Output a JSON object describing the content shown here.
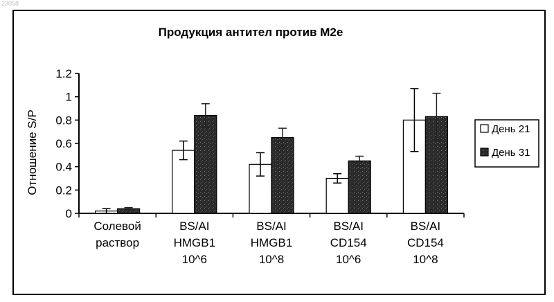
{
  "corner_text": "23058",
  "chart_data": {
    "type": "bar",
    "title": "Продукция антител против M2e",
    "ylabel": "Отношение S/P",
    "xlabel": "",
    "ylim": [
      0,
      1.2
    ],
    "yticks": [
      0,
      0.2,
      0.4,
      0.6,
      0.8,
      1,
      1.2
    ],
    "ytick_labels": [
      "0",
      "0.2",
      "0.4",
      "0.6",
      "0.8",
      "1",
      "1.2"
    ],
    "grid": false,
    "legend_position": "right",
    "categories": [
      [
        "Солевой",
        "раствор"
      ],
      [
        "BS/AI",
        "HMGB1",
        "10^6"
      ],
      [
        "BS/AI",
        "HMGB1",
        "10^8"
      ],
      [
        "BS/AI",
        "CD154",
        "10^6"
      ],
      [
        "BS/AI",
        "CD154",
        "10^8"
      ]
    ],
    "series": [
      {
        "name": "День  21",
        "color": "#ffffff",
        "values": [
          0.02,
          0.54,
          0.42,
          0.3,
          0.8
        ],
        "errors": [
          0.02,
          0.08,
          0.1,
          0.04,
          0.27
        ]
      },
      {
        "name": "День  31",
        "color": "#2a2a2a",
        "values": [
          0.04,
          0.84,
          0.65,
          0.45,
          0.83
        ],
        "errors": [
          0.01,
          0.1,
          0.08,
          0.04,
          0.2
        ]
      }
    ]
  }
}
